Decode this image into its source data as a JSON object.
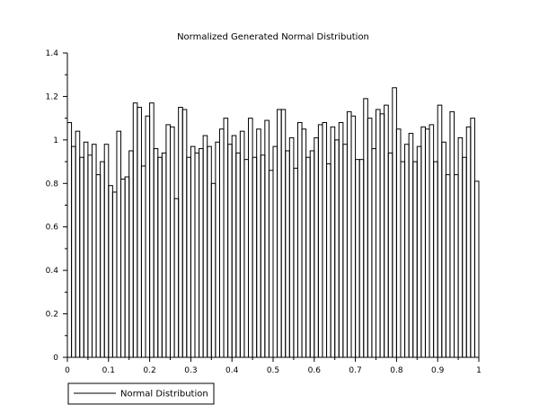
{
  "chart_data": {
    "type": "bar",
    "title": "Normalized Generated Normal Distribution",
    "xlabel": "",
    "ylabel": "",
    "xlim": [
      0,
      1
    ],
    "ylim": [
      0,
      1.4
    ],
    "grid": false,
    "bar_style": "outlined",
    "legend_position": "bottom-left",
    "x_ticks": [
      {
        "value": 0,
        "label": "0"
      },
      {
        "value": 0.1,
        "label": "0.1"
      },
      {
        "value": 0.2,
        "label": "0.2"
      },
      {
        "value": 0.3,
        "label": "0.3"
      },
      {
        "value": 0.4,
        "label": "0.4"
      },
      {
        "value": 0.5,
        "label": "0.5"
      },
      {
        "value": 0.6,
        "label": "0.6"
      },
      {
        "value": 0.7,
        "label": "0.7"
      },
      {
        "value": 0.8,
        "label": "0.8"
      },
      {
        "value": 0.9,
        "label": "0.9"
      },
      {
        "value": 1,
        "label": "1"
      }
    ],
    "y_ticks": [
      {
        "value": 0,
        "label": "0"
      },
      {
        "value": 0.2,
        "label": "0.2"
      },
      {
        "value": 0.4,
        "label": "0.4"
      },
      {
        "value": 0.6,
        "label": "0.6"
      },
      {
        "value": 0.8,
        "label": "0.8"
      },
      {
        "value": 1,
        "label": "1"
      },
      {
        "value": 1.2,
        "label": "1.2"
      },
      {
        "value": 1.4,
        "label": "1.4"
      }
    ],
    "bin_width": 0.01,
    "bin_starts": [
      0.0,
      0.01,
      0.02,
      0.03,
      0.04,
      0.05,
      0.06,
      0.07,
      0.08,
      0.09,
      0.1,
      0.11,
      0.12,
      0.13,
      0.14,
      0.15,
      0.16,
      0.17,
      0.18,
      0.19,
      0.2,
      0.21,
      0.22,
      0.23,
      0.24,
      0.25,
      0.26,
      0.27,
      0.28,
      0.29,
      0.3,
      0.31,
      0.32,
      0.33,
      0.34,
      0.35,
      0.36,
      0.37,
      0.38,
      0.39,
      0.4,
      0.41,
      0.42,
      0.43,
      0.44,
      0.45,
      0.46,
      0.47,
      0.48,
      0.49,
      0.5,
      0.51,
      0.52,
      0.53,
      0.54,
      0.55,
      0.56,
      0.57,
      0.58,
      0.59,
      0.6,
      0.61,
      0.62,
      0.63,
      0.64,
      0.65,
      0.66,
      0.67,
      0.68,
      0.69,
      0.7,
      0.71,
      0.72,
      0.73,
      0.74,
      0.75,
      0.76,
      0.77,
      0.78,
      0.79,
      0.8,
      0.81,
      0.82,
      0.83,
      0.84,
      0.85,
      0.86,
      0.87,
      0.88,
      0.89,
      0.9,
      0.91,
      0.92,
      0.93,
      0.94,
      0.95,
      0.96,
      0.97,
      0.98,
      0.99
    ],
    "series": [
      {
        "name": "Normal Distribution",
        "values": [
          1.08,
          0.97,
          1.04,
          0.92,
          0.99,
          0.93,
          0.98,
          0.84,
          0.9,
          0.98,
          0.79,
          0.76,
          1.04,
          0.82,
          0.83,
          0.95,
          1.17,
          1.15,
          0.88,
          1.11,
          1.17,
          0.96,
          0.92,
          0.94,
          1.07,
          1.06,
          0.73,
          1.15,
          1.14,
          0.92,
          0.97,
          0.94,
          0.96,
          1.02,
          0.97,
          0.8,
          0.99,
          1.05,
          1.1,
          0.98,
          1.02,
          0.94,
          1.04,
          0.91,
          1.1,
          0.92,
          1.05,
          0.93,
          1.09,
          0.86,
          0.97,
          1.14,
          1.14,
          0.95,
          1.01,
          0.87,
          1.08,
          1.05,
          0.92,
          0.95,
          1.01,
          1.07,
          1.08,
          0.89,
          1.06,
          1.0,
          1.08,
          0.98,
          1.13,
          1.11,
          0.91,
          0.91,
          1.19,
          1.1,
          0.96,
          1.14,
          1.12,
          1.16,
          0.94,
          1.24,
          1.05,
          0.9,
          0.98,
          1.03,
          0.9,
          0.97,
          1.06,
          1.05,
          1.07,
          0.9,
          1.16,
          0.99,
          0.84,
          1.13,
          0.84,
          1.01,
          0.92,
          1.06,
          1.1,
          0.81
        ]
      }
    ],
    "legend": [
      {
        "label": "Normal Distribution",
        "style": "line"
      }
    ]
  }
}
